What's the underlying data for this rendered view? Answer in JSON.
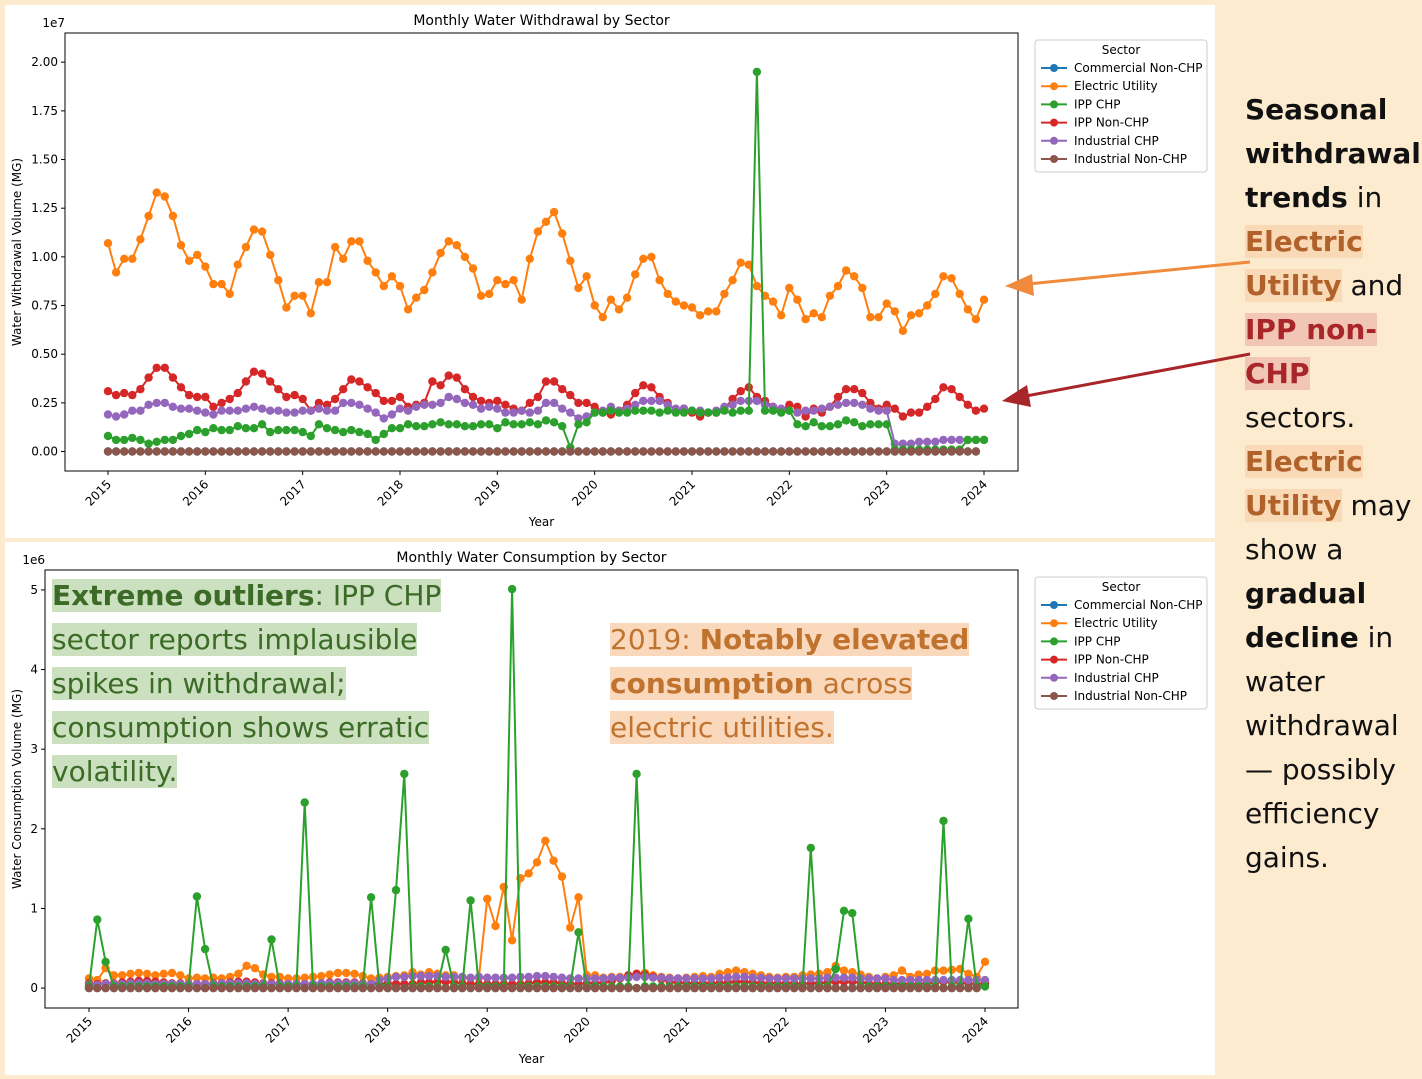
{
  "years": [
    "2015",
    "2016",
    "2017",
    "2018",
    "2019",
    "2020",
    "2021",
    "2022",
    "2023",
    "2024"
  ],
  "legend_title": "Sector",
  "sectors": [
    {
      "name": "Commercial Non-CHP",
      "color": "#1f77b4"
    },
    {
      "name": "Electric Utility",
      "color": "#ff7f0e"
    },
    {
      "name": "IPP CHP",
      "color": "#2ca02c"
    },
    {
      "name": "IPP Non-CHP",
      "color": "#d62728"
    },
    {
      "name": "Industrial CHP",
      "color": "#9467bd"
    },
    {
      "name": "Industrial Non-CHP",
      "color": "#8c564b"
    }
  ],
  "chart_data": [
    {
      "type": "line",
      "title": "Monthly Water Withdrawal by Sector",
      "xlabel": "Year",
      "ylabel": "Water Withdrawal Volume (MG)",
      "y_multiplier": "1e7",
      "xlim": [
        2015,
        2024
      ],
      "ylim": [
        -0.1,
        2.15
      ],
      "y_ticks": [
        "0.00",
        "0.25",
        "0.50",
        "0.75",
        "1.00",
        "1.25",
        "1.50",
        "1.75",
        "2.00"
      ],
      "legend_loc": "upper right",
      "series": [
        {
          "name": "Electric Utility",
          "values": [
            1.07,
            0.92,
            0.99,
            0.99,
            1.09,
            1.21,
            1.33,
            1.31,
            1.21,
            1.06,
            0.98,
            1.01,
            0.95,
            0.86,
            0.86,
            0.81,
            0.96,
            1.05,
            1.14,
            1.13,
            1.01,
            0.88,
            0.74,
            0.8,
            0.8,
            0.71,
            0.87,
            0.87,
            1.05,
            0.99,
            1.08,
            1.08,
            0.98,
            0.92,
            0.85,
            0.9,
            0.85,
            0.73,
            0.79,
            0.83,
            0.92,
            1.02,
            1.08,
            1.06,
            1.0,
            0.94,
            0.8,
            0.81,
            0.88,
            0.86,
            0.88,
            0.78,
            0.99,
            1.13,
            1.18,
            1.23,
            1.12,
            0.98,
            0.84,
            0.9,
            0.75,
            0.69,
            0.78,
            0.73,
            0.79,
            0.91,
            0.99,
            1.0,
            0.88,
            0.81,
            0.77,
            0.75,
            0.74,
            0.7,
            0.72,
            0.72,
            0.81,
            0.88,
            0.97,
            0.96,
            0.85,
            0.8,
            0.77,
            0.7,
            0.84,
            0.78,
            0.68,
            0.71,
            0.69,
            0.8,
            0.85,
            0.93,
            0.9,
            0.84,
            0.69,
            0.69,
            0.76,
            0.72,
            0.62,
            0.7,
            0.71,
            0.75,
            0.81,
            0.9,
            0.89,
            0.81,
            0.73,
            0.68,
            0.78
          ]
        },
        {
          "name": "IPP Non-CHP",
          "values": [
            0.31,
            0.29,
            0.3,
            0.29,
            0.32,
            0.38,
            0.43,
            0.43,
            0.38,
            0.33,
            0.29,
            0.28,
            0.28,
            0.23,
            0.25,
            0.27,
            0.3,
            0.36,
            0.41,
            0.4,
            0.36,
            0.32,
            0.28,
            0.29,
            0.27,
            0.21,
            0.25,
            0.24,
            0.27,
            0.32,
            0.37,
            0.36,
            0.33,
            0.3,
            0.26,
            0.26,
            0.28,
            0.23,
            0.24,
            0.25,
            0.36,
            0.34,
            0.39,
            0.38,
            0.32,
            0.28,
            0.26,
            0.25,
            0.26,
            0.24,
            0.22,
            0.21,
            0.25,
            0.28,
            0.36,
            0.36,
            0.32,
            0.29,
            0.25,
            0.25,
            0.23,
            0.2,
            0.19,
            0.21,
            0.24,
            0.3,
            0.34,
            0.33,
            0.28,
            0.25,
            0.21,
            0.22,
            0.2,
            0.18,
            0.2,
            0.2,
            0.22,
            0.27,
            0.31,
            0.33,
            0.28,
            0.26,
            0.23,
            0.21,
            0.24,
            0.23,
            0.18,
            0.22,
            0.2,
            0.23,
            0.28,
            0.32,
            0.32,
            0.3,
            0.25,
            0.22,
            0.24,
            0.22,
            0.18,
            0.2,
            0.2,
            0.23,
            0.27,
            0.33,
            0.32,
            0.28,
            0.24,
            0.21,
            0.22
          ]
        },
        {
          "name": "Industrial CHP",
          "values": [
            0.19,
            0.18,
            0.19,
            0.21,
            0.21,
            0.24,
            0.25,
            0.25,
            0.23,
            0.22,
            0.22,
            0.21,
            0.2,
            0.19,
            0.21,
            0.21,
            0.21,
            0.22,
            0.23,
            0.22,
            0.21,
            0.21,
            0.2,
            0.2,
            0.21,
            0.21,
            0.22,
            0.21,
            0.21,
            0.25,
            0.25,
            0.24,
            0.22,
            0.2,
            0.17,
            0.19,
            0.22,
            0.21,
            0.23,
            0.24,
            0.24,
            0.25,
            0.28,
            0.27,
            0.25,
            0.24,
            0.22,
            0.23,
            0.22,
            0.2,
            0.2,
            0.21,
            0.2,
            0.21,
            0.25,
            0.25,
            0.22,
            0.2,
            0.17,
            0.18,
            0.2,
            0.21,
            0.23,
            0.21,
            0.22,
            0.24,
            0.26,
            0.26,
            0.26,
            0.24,
            0.22,
            0.22,
            0.21,
            0.21,
            0.2,
            0.21,
            0.23,
            0.24,
            0.26,
            0.26,
            0.26,
            0.24,
            0.23,
            0.22,
            0.21,
            0.2,
            0.21,
            0.21,
            0.22,
            0.23,
            0.24,
            0.25,
            0.25,
            0.24,
            0.22,
            0.21,
            0.21,
            0.04,
            0.04,
            0.04,
            0.05,
            0.05,
            0.05,
            0.06,
            0.06,
            0.06,
            0.06,
            0.06,
            0.06
          ]
        },
        {
          "name": "IPP CHP",
          "values": [
            0.08,
            0.06,
            0.06,
            0.07,
            0.06,
            0.04,
            0.05,
            0.06,
            0.06,
            0.08,
            0.09,
            0.11,
            0.1,
            0.12,
            0.11,
            0.11,
            0.13,
            0.12,
            0.12,
            0.14,
            0.1,
            0.11,
            0.11,
            0.11,
            0.1,
            0.08,
            0.14,
            0.12,
            0.11,
            0.1,
            0.11,
            0.1,
            0.09,
            0.06,
            0.09,
            0.12,
            0.12,
            0.14,
            0.13,
            0.13,
            0.14,
            0.15,
            0.14,
            0.14,
            0.13,
            0.13,
            0.14,
            0.14,
            0.12,
            0.15,
            0.14,
            0.14,
            0.15,
            0.14,
            0.16,
            0.15,
            0.13,
            0.02,
            0.14,
            0.15,
            0.2,
            0.2,
            0.21,
            0.2,
            0.2,
            0.21,
            0.21,
            0.21,
            0.2,
            0.21,
            0.2,
            0.2,
            0.21,
            0.2,
            0.2,
            0.2,
            0.21,
            0.2,
            0.21,
            0.21,
            1.95,
            0.21,
            0.21,
            0.2,
            0.21,
            0.14,
            0.13,
            0.15,
            0.13,
            0.13,
            0.14,
            0.16,
            0.15,
            0.13,
            0.14,
            0.14,
            0.14,
            0.01,
            0.01,
            0.01,
            0.01,
            0.01,
            0.01,
            0.01,
            0.01,
            0.01,
            0.06,
            0.06,
            0.06
          ]
        },
        {
          "name": "Commercial Non-CHP",
          "values": [
            0.0
          ]
        },
        {
          "name": "Industrial Non-CHP",
          "values": [
            0.0
          ]
        }
      ]
    },
    {
      "type": "line",
      "title": "Monthly Water Consumption by Sector",
      "xlabel": "Year",
      "ylabel": "Water Consumption Volume (MG)",
      "y_multiplier": "1e6",
      "xlim": [
        2015,
        2024
      ],
      "ylim": [
        -0.25,
        5.25
      ],
      "y_ticks": [
        "0",
        "1",
        "2",
        "3",
        "4",
        "5"
      ],
      "legend_loc": "upper right",
      "series": [
        {
          "name": "Electric Utility",
          "values": [
            0.12,
            0.1,
            0.25,
            0.16,
            0.16,
            0.18,
            0.19,
            0.18,
            0.16,
            0.18,
            0.19,
            0.16,
            0.12,
            0.13,
            0.12,
            0.13,
            0.12,
            0.14,
            0.18,
            0.28,
            0.25,
            0.17,
            0.14,
            0.14,
            0.12,
            0.12,
            0.13,
            0.14,
            0.15,
            0.17,
            0.19,
            0.19,
            0.18,
            0.15,
            0.12,
            0.13,
            0.14,
            0.15,
            0.16,
            0.2,
            0.17,
            0.2,
            0.18,
            0.16,
            0.16,
            0.13,
            0.12,
            0.13,
            1.12,
            0.78,
            1.27,
            0.6,
            1.38,
            1.44,
            1.58,
            1.85,
            1.6,
            1.4,
            0.76,
            1.14,
            0.16,
            0.16,
            0.13,
            0.14,
            0.14,
            0.16,
            0.18,
            0.19,
            0.16,
            0.14,
            0.13,
            0.12,
            0.13,
            0.14,
            0.15,
            0.14,
            0.18,
            0.2,
            0.22,
            0.2,
            0.18,
            0.16,
            0.14,
            0.13,
            0.14,
            0.14,
            0.16,
            0.17,
            0.18,
            0.2,
            0.28,
            0.22,
            0.2,
            0.17,
            0.14,
            0.12,
            0.14,
            0.16,
            0.22,
            0.14,
            0.17,
            0.18,
            0.22,
            0.22,
            0.23,
            0.24,
            0.18,
            0.14,
            0.33
          ]
        },
        {
          "name": "IPP Non-CHP",
          "values": [
            0.06,
            0.05,
            0.06,
            0.06,
            0.07,
            0.08,
            0.09,
            0.09,
            0.08,
            0.07,
            0.06,
            0.06,
            0.05,
            0.05,
            0.05,
            0.06,
            0.06,
            0.07,
            0.08,
            0.08,
            0.07,
            0.06,
            0.06,
            0.06,
            0.05,
            0.05,
            0.05,
            0.05,
            0.06,
            0.07,
            0.07,
            0.07,
            0.07,
            0.06,
            0.05,
            0.05,
            0.06,
            0.05,
            0.05,
            0.05,
            0.07,
            0.07,
            0.08,
            0.08,
            0.07,
            0.06,
            0.05,
            0.05,
            0.05,
            0.05,
            0.05,
            0.05,
            0.05,
            0.06,
            0.07,
            0.07,
            0.07,
            0.06,
            0.05,
            0.05,
            0.06,
            0.06,
            0.07,
            0.09,
            0.12,
            0.16,
            0.18,
            0.17,
            0.14,
            0.11,
            0.08,
            0.07,
            0.06,
            0.06,
            0.06,
            0.06,
            0.06,
            0.07,
            0.08,
            0.08,
            0.07,
            0.06,
            0.06,
            0.06,
            0.06,
            0.06,
            0.05,
            0.06,
            0.06,
            0.07,
            0.08,
            0.08,
            0.08,
            0.07,
            0.06,
            0.05,
            0.05,
            0.06,
            0.05,
            0.05,
            0.05,
            0.06,
            0.07,
            0.08,
            0.08,
            0.07,
            0.06,
            0.05,
            0.06
          ]
        },
        {
          "name": "Industrial CHP",
          "values": [
            0.04,
            0.04,
            0.05,
            0.05,
            0.05,
            0.06,
            0.06,
            0.06,
            0.05,
            0.05,
            0.05,
            0.05,
            0.05,
            0.05,
            0.05,
            0.05,
            0.06,
            0.06,
            0.06,
            0.06,
            0.05,
            0.05,
            0.05,
            0.05,
            0.05,
            0.05,
            0.05,
            0.05,
            0.06,
            0.06,
            0.06,
            0.06,
            0.06,
            0.05,
            0.05,
            0.1,
            0.12,
            0.14,
            0.14,
            0.15,
            0.15,
            0.15,
            0.15,
            0.14,
            0.14,
            0.14,
            0.13,
            0.14,
            0.13,
            0.13,
            0.13,
            0.13,
            0.14,
            0.14,
            0.15,
            0.15,
            0.14,
            0.13,
            0.12,
            0.12,
            0.12,
            0.12,
            0.12,
            0.13,
            0.13,
            0.13,
            0.14,
            0.14,
            0.13,
            0.13,
            0.12,
            0.12,
            0.12,
            0.12,
            0.12,
            0.12,
            0.13,
            0.13,
            0.14,
            0.14,
            0.13,
            0.13,
            0.12,
            0.12,
            0.12,
            0.12,
            0.12,
            0.12,
            0.12,
            0.13,
            0.13,
            0.13,
            0.13,
            0.12,
            0.12,
            0.12,
            0.12,
            0.1,
            0.1,
            0.1,
            0.1,
            0.1,
            0.1,
            0.1,
            0.1,
            0.1,
            0.1,
            0.1,
            0.1
          ]
        },
        {
          "name": "IPP CHP",
          "values": [
            0.02,
            0.86,
            0.33,
            0.02,
            0.02,
            0.02,
            0.02,
            0.02,
            0.02,
            0.02,
            0.02,
            0.02,
            0.02,
            1.15,
            0.49,
            0.02,
            0.02,
            0.02,
            0.02,
            0.02,
            0.02,
            0.02,
            0.61,
            0.02,
            0.02,
            0.02,
            2.33,
            0.02,
            0.02,
            0.02,
            0.02,
            0.02,
            0.02,
            0.02,
            1.14,
            0.02,
            0.02,
            1.23,
            2.69,
            0.02,
            0.02,
            0.02,
            0.02,
            0.48,
            0.02,
            0.02,
            1.1,
            0.02,
            0.02,
            0.02,
            0.02,
            5.01,
            0.02,
            0.02,
            0.02,
            0.02,
            0.02,
            0.02,
            0.02,
            0.7,
            0.02,
            0.02,
            0.02,
            0.02,
            0.02,
            0.02,
            2.69,
            0.02,
            0.02,
            0.02,
            0.02,
            0.02,
            0.02,
            0.02,
            0.02,
            0.02,
            0.02,
            0.02,
            0.02,
            0.02,
            0.02,
            0.02,
            0.02,
            0.02,
            0.02,
            0.02,
            0.02,
            1.76,
            0.02,
            0.02,
            0.24,
            0.97,
            0.94,
            0.02,
            0.02,
            0.02,
            0.02,
            0.02,
            0.02,
            0.02,
            0.02,
            0.02,
            0.02,
            2.1,
            0.02,
            0.02,
            0.87,
            0.02,
            0.02
          ]
        },
        {
          "name": "Commercial Non-CHP",
          "values": [
            0.0
          ]
        },
        {
          "name": "Industrial Non-CHP",
          "values": [
            0.0
          ]
        }
      ]
    }
  ],
  "sidebar": {
    "p1": "Seasonal withdrawal trends",
    "p2": " in ",
    "p3": "Electric Utility",
    "p4": " and ",
    "p5": "IPP non-CHP",
    "p6": " sectors. ",
    "p7": "Electric Utility",
    "p8": " may show a ",
    "p9": "gradual decline",
    "p10": " in water withdrawal — possibly efficiency gains."
  },
  "annotations": {
    "green_bold": "Extreme outliers",
    "green_text": ": IPP CHP sector reports implausible spikes in withdrawal; consumption shows erratic volatility.",
    "orange_prefix": "2019: ",
    "orange_bold": "Notably elevated consumption",
    "orange_text": " across electric utilities."
  }
}
